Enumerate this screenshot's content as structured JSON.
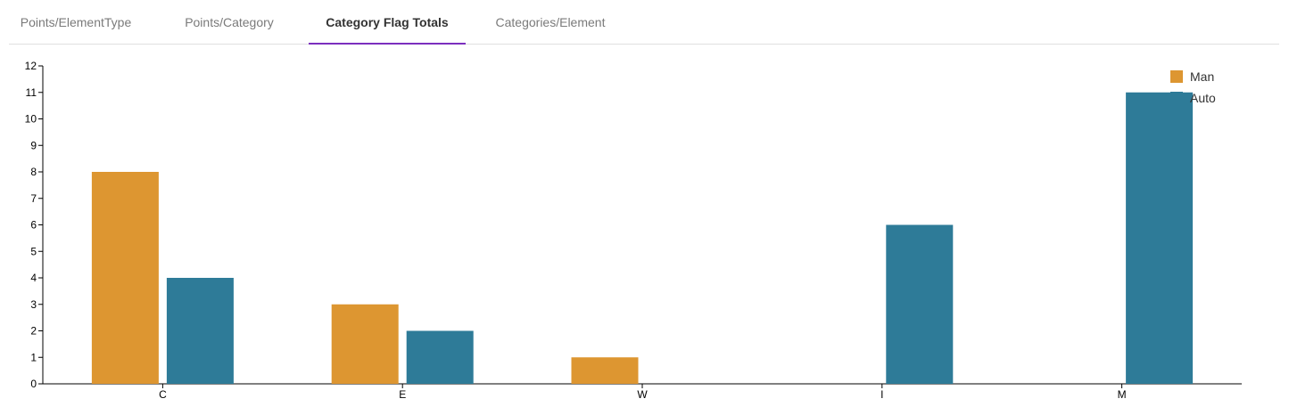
{
  "tabs": [
    {
      "label": "Points/ElementType",
      "active": false
    },
    {
      "label": "Points/Category",
      "active": false
    },
    {
      "label": "Category Flag Totals",
      "active": true
    },
    {
      "label": "Categories/Element",
      "active": false
    }
  ],
  "colors": {
    "accent": "#7b2fbe"
  },
  "chart_data": {
    "type": "bar",
    "categories": [
      "C",
      "E",
      "W",
      "I",
      "M"
    ],
    "series": [
      {
        "name": "Man",
        "color": "#dd9631",
        "values": [
          8,
          3,
          1,
          0,
          0
        ]
      },
      {
        "name": "Auto",
        "color": "#2e7b98",
        "values": [
          4,
          2,
          0,
          6,
          11
        ]
      }
    ],
    "ylim": [
      0,
      12
    ],
    "yticks": [
      0,
      1,
      2,
      3,
      4,
      5,
      6,
      7,
      8,
      9,
      10,
      11,
      12
    ],
    "legend": "top-right",
    "grid": false
  }
}
